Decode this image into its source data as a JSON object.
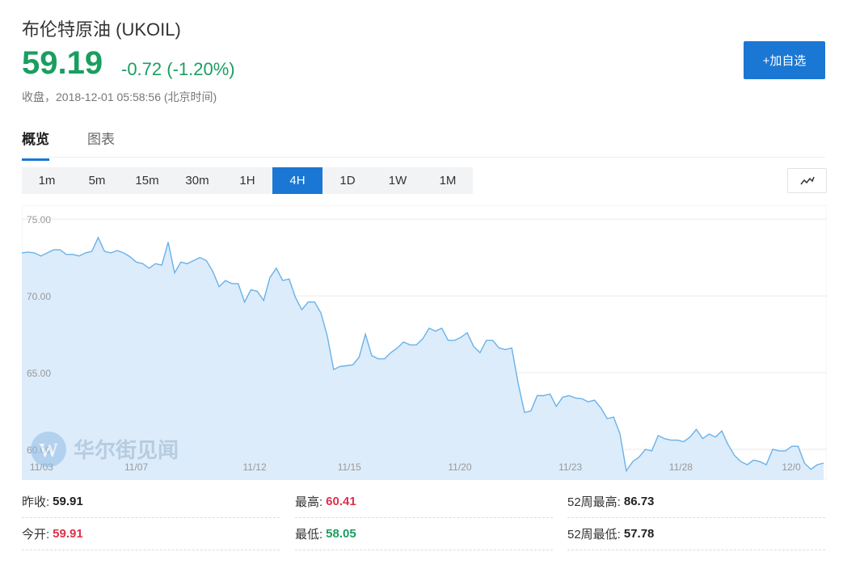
{
  "header": {
    "title": "布伦特原油 (UKOIL)",
    "price": "59.19",
    "change": "-0.72 (-1.20%)",
    "status": "收盘，2018-12-01 05:58:56 (北京时间)",
    "add_label": "+加自选"
  },
  "colors": {
    "price_green": "#1a9e5f",
    "high_red": "#e0304a",
    "accent_blue": "#1a77d4",
    "line_blue": "#6ab2e8",
    "area_fill": "#dcecfb"
  },
  "tabs": [
    {
      "label": "概览",
      "active": true
    },
    {
      "label": "图表",
      "active": false
    }
  ],
  "periods": [
    {
      "label": "1m"
    },
    {
      "label": "5m"
    },
    {
      "label": "15m"
    },
    {
      "label": "30m"
    },
    {
      "label": "1H"
    },
    {
      "label": "4H",
      "active": true
    },
    {
      "label": "1D"
    },
    {
      "label": "1W"
    },
    {
      "label": "1M"
    }
  ],
  "chart_type_icon": "line-chart-icon",
  "watermark": {
    "text": "华尔街见闻",
    "logo_letter": "W"
  },
  "chart_data": {
    "type": "area",
    "ytick_labels": [
      "75.00",
      "70.00",
      "65.00",
      "60.00"
    ],
    "yticks": [
      75,
      70,
      65,
      60
    ],
    "xtick_labels": [
      "11/03",
      "11/07",
      "11/12",
      "11/15",
      "11/20",
      "11/23",
      "11/28",
      "12/0"
    ],
    "xtick_positions": [
      2.5,
      14.5,
      29.5,
      41.5,
      55.5,
      69.5,
      83.5,
      97.5
    ],
    "ylim": [
      58.0,
      75.9
    ],
    "xlim": [
      0,
      102
    ],
    "grid": true,
    "series": [
      {
        "values": [
          72.8,
          72.85,
          72.8,
          72.6,
          72.8,
          73.0,
          73.0,
          72.7,
          72.7,
          72.6,
          72.8,
          72.9,
          73.8,
          72.9,
          72.8,
          72.95,
          72.8,
          72.55,
          72.2,
          72.1,
          71.8,
          72.1,
          72.0,
          73.5,
          71.5,
          72.2,
          72.1,
          72.3,
          72.5,
          72.3,
          71.6,
          70.6,
          71.0,
          70.8,
          70.8,
          69.6,
          70.4,
          70.3,
          69.7,
          71.2,
          71.8,
          71.0,
          71.1,
          69.9,
          69.1,
          69.6,
          69.6,
          68.9,
          67.4,
          65.2,
          65.4,
          65.45,
          65.5,
          66.0,
          67.5,
          66.1,
          65.9,
          65.9,
          66.3,
          66.6,
          67.0,
          66.8,
          66.8,
          67.2,
          67.9,
          67.7,
          67.9,
          67.1,
          67.1,
          67.3,
          67.6,
          66.7,
          66.3,
          67.1,
          67.1,
          66.6,
          66.5,
          66.6,
          64.3,
          62.4,
          62.5,
          63.5,
          63.5,
          63.6,
          62.8,
          63.4,
          63.5,
          63.35,
          63.3,
          63.1,
          63.2,
          62.7,
          62.0,
          62.1,
          61.0,
          58.6,
          59.2,
          59.5,
          60.0,
          59.9,
          60.9,
          60.7,
          60.6,
          60.6,
          60.5,
          60.8,
          61.3,
          60.7,
          61.0,
          60.8,
          61.2,
          60.3,
          59.6,
          59.2,
          59.0,
          59.3,
          59.2,
          59.0,
          60.0,
          59.9,
          59.9,
          60.2,
          60.2,
          59.1,
          58.7,
          59.0,
          59.1
        ]
      }
    ]
  },
  "stats": {
    "prev_close": {
      "label": "昨收:",
      "value": "59.91"
    },
    "open": {
      "label": "今开:",
      "value": "59.91"
    },
    "high": {
      "label": "最高:",
      "value": "60.41"
    },
    "low": {
      "label": "最低:",
      "value": "58.05"
    },
    "week52_high": {
      "label": "52周最高:",
      "value": "86.73"
    },
    "week52_low": {
      "label": "52周最低:",
      "value": "57.78"
    }
  }
}
